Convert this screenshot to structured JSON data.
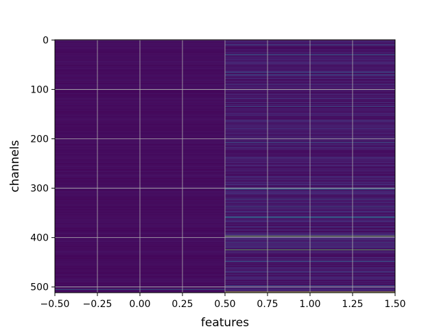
{
  "chart_data": {
    "type": "heatmap",
    "title": "",
    "xlabel": "features",
    "ylabel": "channels",
    "xlim": [
      -0.5,
      1.5
    ],
    "ylim": [
      511.5,
      -0.5
    ],
    "x_ticks": [
      "−0.50",
      "−0.25",
      "0.00",
      "0.25",
      "0.50",
      "0.75",
      "1.00",
      "1.25",
      "1.50"
    ],
    "y_ticks": [
      "0",
      "100",
      "200",
      "300",
      "400",
      "500"
    ],
    "x_tick_values": [
      -0.5,
      -0.25,
      0.0,
      0.25,
      0.5,
      0.75,
      1.0,
      1.25,
      1.5
    ],
    "y_tick_values": [
      0,
      100,
      200,
      300,
      400,
      500
    ],
    "grid": true,
    "colormap": "viridis",
    "n_rows": 512,
    "columns": [
      0,
      1
    ],
    "baseline_value": [
      0.05,
      0.12
    ],
    "highlight_rows": {
      "column_0": [
        {
          "row": 505,
          "value": 0.45
        }
      ],
      "column_1": [
        {
          "row": 10,
          "value": 0.35
        },
        {
          "row": 30,
          "value": 0.45
        },
        {
          "row": 65,
          "value": 0.4
        },
        {
          "row": 70,
          "value": 0.35
        },
        {
          "row": 135,
          "value": 0.35
        },
        {
          "row": 200,
          "value": 0.3
        },
        {
          "row": 207,
          "value": 0.35
        },
        {
          "row": 300,
          "value": 0.6
        },
        {
          "row": 302,
          "value": 0.55
        },
        {
          "row": 322,
          "value": 0.35
        },
        {
          "row": 338,
          "value": 0.4
        },
        {
          "row": 358,
          "value": 0.5
        },
        {
          "row": 360,
          "value": 0.45
        },
        {
          "row": 397,
          "value": 0.9
        },
        {
          "row": 410,
          "value": 0.3
        },
        {
          "row": 425,
          "value": 0.85
        },
        {
          "row": 448,
          "value": 0.4
        },
        {
          "row": 470,
          "value": 0.3
        },
        {
          "row": 497,
          "value": 0.35
        },
        {
          "row": 510,
          "value": 0.95
        }
      ]
    }
  }
}
